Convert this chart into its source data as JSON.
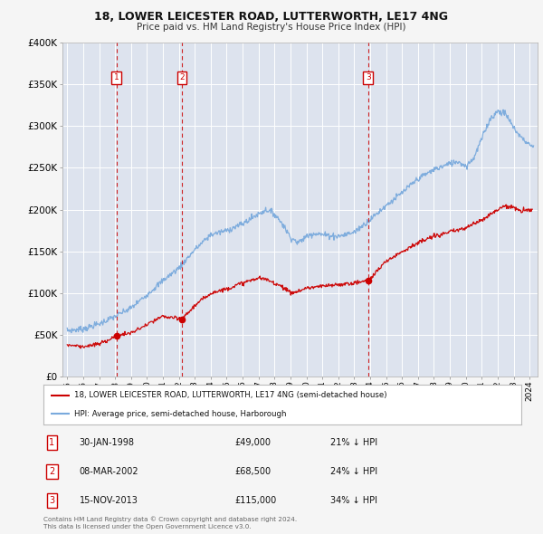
{
  "title": "18, LOWER LEICESTER ROAD, LUTTERWORTH, LE17 4NG",
  "subtitle": "Price paid vs. HM Land Registry's House Price Index (HPI)",
  "background_color": "#f5f5f5",
  "plot_bg_color": "#dde3ee",
  "grid_color": "#ffffff",
  "ylim": [
    0,
    400000
  ],
  "yticks": [
    0,
    50000,
    100000,
    150000,
    200000,
    250000,
    300000,
    350000,
    400000
  ],
  "ytick_labels": [
    "£0",
    "£50K",
    "£100K",
    "£150K",
    "£200K",
    "£250K",
    "£300K",
    "£350K",
    "£400K"
  ],
  "xtick_years": [
    1995,
    1996,
    1997,
    1998,
    1999,
    2000,
    2001,
    2002,
    2003,
    2004,
    2005,
    2006,
    2007,
    2008,
    2009,
    2010,
    2011,
    2012,
    2013,
    2014,
    2015,
    2016,
    2017,
    2018,
    2019,
    2020,
    2021,
    2022,
    2023,
    2024
  ],
  "red_line_color": "#cc0000",
  "blue_line_color": "#7aaadd",
  "vline_color": "#cc0000",
  "marker_box_color": "#cc0000",
  "transactions": [
    {
      "num": 1,
      "year": 1998.08,
      "price": 49000,
      "label": "30-JAN-1998",
      "price_str": "£49,000",
      "pct": "21% ↓ HPI"
    },
    {
      "num": 2,
      "year": 2002.19,
      "price": 68500,
      "label": "08-MAR-2002",
      "price_str": "£68,500",
      "pct": "24% ↓ HPI"
    },
    {
      "num": 3,
      "year": 2013.88,
      "price": 115000,
      "label": "15-NOV-2013",
      "price_str": "£115,000",
      "pct": "34% ↓ HPI"
    }
  ],
  "legend_label_red": "18, LOWER LEICESTER ROAD, LUTTERWORTH, LE17 4NG (semi-detached house)",
  "legend_label_blue": "HPI: Average price, semi-detached house, Harborough",
  "footer1": "Contains HM Land Registry data © Crown copyright and database right 2024.",
  "footer2": "This data is licensed under the Open Government Licence v3.0.",
  "hpi_keypoints_x": [
    1995,
    1996,
    1997,
    1998,
    1999,
    2000,
    2001,
    2002,
    2003,
    2004,
    2005,
    2006,
    2007,
    2007.5,
    2008,
    2008.5,
    2009,
    2009.5,
    2010,
    2010.5,
    2011,
    2012,
    2013,
    2014,
    2015,
    2016,
    2017,
    2018,
    2019,
    2019.5,
    2020,
    2020.5,
    2021,
    2021.5,
    2022,
    2022.5,
    2023,
    2023.5,
    2024,
    2024.25
  ],
  "hpi_keypoints_y": [
    55000,
    57000,
    63000,
    72000,
    82000,
    98000,
    115000,
    130000,
    152000,
    170000,
    175000,
    183000,
    195000,
    200000,
    195000,
    183000,
    167000,
    160000,
    168000,
    172000,
    170000,
    168000,
    173000,
    188000,
    205000,
    220000,
    237000,
    248000,
    255000,
    258000,
    252000,
    262000,
    285000,
    308000,
    318000,
    315000,
    298000,
    286000,
    278000,
    275000
  ],
  "pp_keypoints_x": [
    1995,
    1995.5,
    1996,
    1996.5,
    1997,
    1997.5,
    1998.08,
    1999,
    2000,
    2001,
    2002.19,
    2003,
    2004,
    2005,
    2006,
    2007,
    2007.5,
    2008,
    2008.5,
    2009,
    2009.5,
    2010,
    2011,
    2012,
    2013,
    2013.88,
    2015,
    2016,
    2017,
    2018,
    2019,
    2020,
    2021,
    2022,
    2022.5,
    2023,
    2023.5,
    2024,
    2024.17
  ],
  "pp_keypoints_y": [
    38000,
    37000,
    36000,
    37000,
    39000,
    43000,
    49000,
    52000,
    62000,
    72000,
    68500,
    85000,
    100000,
    105000,
    112000,
    118000,
    116000,
    112000,
    108000,
    100000,
    102000,
    106000,
    108000,
    110000,
    112000,
    115000,
    138000,
    150000,
    160000,
    168000,
    173000,
    178000,
    188000,
    200000,
    205000,
    202000,
    198000,
    200000,
    200000
  ]
}
